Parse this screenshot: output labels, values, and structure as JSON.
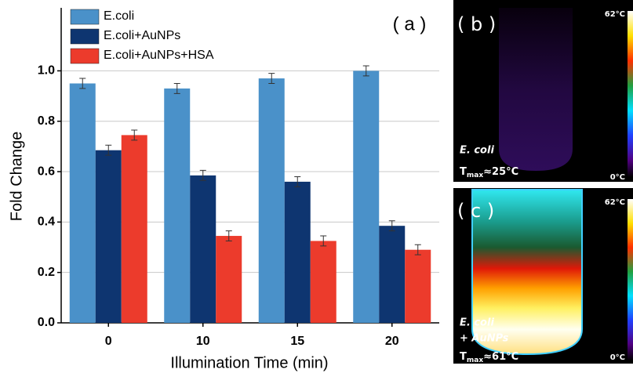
{
  "chart_data": {
    "type": "bar",
    "annotation": "( a )",
    "x_label": "Illumination Time (min)",
    "y_label": "Fold Change",
    "categories": [
      "0",
      "10",
      "15",
      "20"
    ],
    "series": [
      {
        "name": "E.coli",
        "color": "#4a91c9",
        "values": [
          0.95,
          0.93,
          0.97,
          1.0
        ],
        "errors": [
          0.02,
          0.02,
          0.02,
          0.02
        ]
      },
      {
        "name": "E.coli+AuNPs",
        "color": "#0e3570",
        "values": [
          0.685,
          0.585,
          0.56,
          0.385
        ],
        "errors": [
          0.02,
          0.02,
          0.02,
          0.02
        ]
      },
      {
        "name": "E.coli+AuNPs+HSA",
        "color": "#ec3b2c",
        "values": [
          0.745,
          0.345,
          0.325,
          0.29
        ],
        "errors": [
          0.02,
          0.02,
          0.02,
          0.02
        ]
      }
    ],
    "ylim": [
      0,
      1.25
    ],
    "yticks": [
      {
        "value": 0,
        "label": "0.0"
      },
      0.2,
      0.4,
      0.6,
      0.8,
      {
        "value": 1,
        "label": "1.0"
      }
    ],
    "grid": true,
    "legend": "upper-left"
  },
  "panels": [
    {
      "label": "( b )",
      "scale_max": "62°C",
      "scale_min": "0°C",
      "sample": [
        "E. coli"
      ],
      "tmax": {
        "symbol": "T",
        "subscript": "max",
        "value": "≈25°C"
      }
    },
    {
      "label": "( c )",
      "scale_max": "62°C",
      "scale_min": "0°C",
      "sample": [
        "E. coli",
        "+ AuNPs"
      ],
      "tmax": {
        "symbol": "T",
        "subscript": "max",
        "value": "≈61°C"
      }
    }
  ]
}
